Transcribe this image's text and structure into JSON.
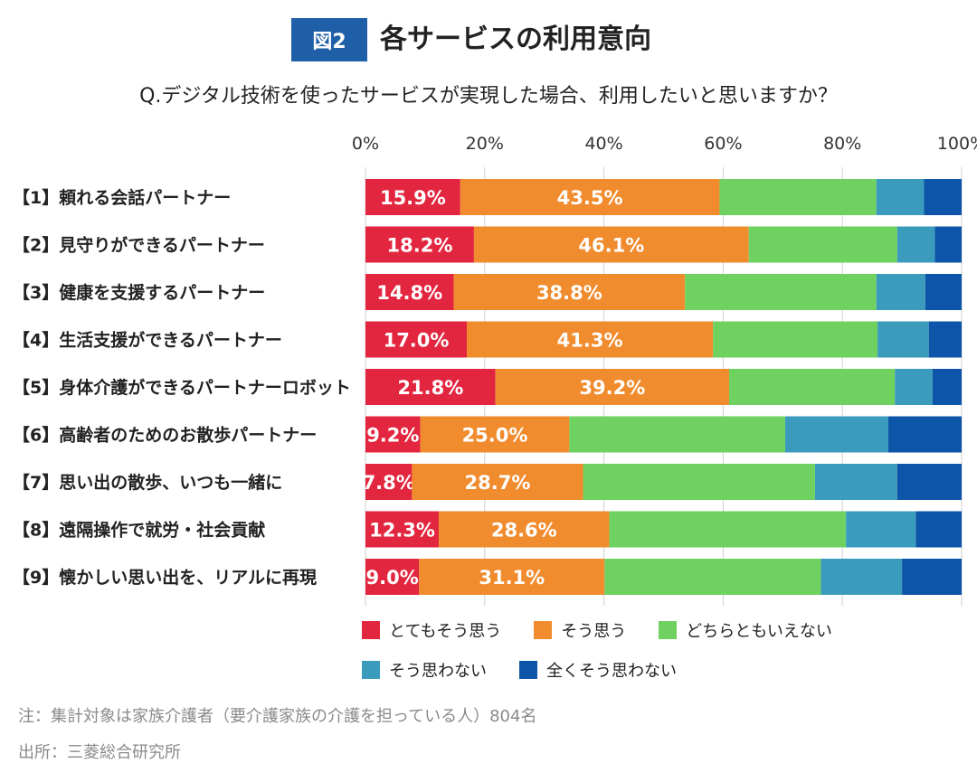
{
  "header": {
    "figure_label": "図2",
    "title": "各サービスの利用意向",
    "question": "Q.デジタル技術を使ったサービスが実現した場合、利用したいと思いますか？"
  },
  "chart_data": {
    "type": "bar",
    "orientation": "horizontal",
    "stacked": true,
    "title": "各サービスの利用意向",
    "xlim": [
      0,
      100
    ],
    "x_ticks": [
      "0%",
      "20%",
      "40%",
      "60%",
      "80%",
      "100%"
    ],
    "grid": true,
    "legend_position": "bottom",
    "categories": [
      "【1】頼れる会話パートナー",
      "【2】見守りができるパートナー",
      "【3】健康を支援するパートナー",
      "【4】生活支援ができるパートナー",
      "【5】身体介護ができるパートナーロボット",
      "【6】高齢者のためのお散歩パートナー",
      "【7】思い出の散歩、いつも一緒に",
      "【8】遠隔操作で就労・社会貢献",
      "【9】懐かしい思い出を、リアルに再現"
    ],
    "series": [
      {
        "name": "とてもそう思う",
        "color": "#e3263f",
        "labels_shown": true,
        "values": [
          15.9,
          18.2,
          14.8,
          17.0,
          21.8,
          9.2,
          7.8,
          12.3,
          9.0
        ]
      },
      {
        "name": "そう思う",
        "color": "#f08c2e",
        "labels_shown": true,
        "values": [
          43.5,
          46.1,
          38.8,
          41.3,
          39.2,
          25.0,
          28.7,
          28.6,
          31.1
        ]
      },
      {
        "name": "どちらともいえない",
        "color": "#6fd15f",
        "labels_shown": false,
        "values": [
          26.3,
          24.9,
          32.1,
          27.6,
          27.8,
          36.2,
          38.9,
          39.7,
          36.3
        ]
      },
      {
        "name": "そう思わない",
        "color": "#3b9bbd",
        "labels_shown": false,
        "values": [
          8.0,
          6.3,
          8.2,
          8.6,
          6.3,
          17.3,
          13.8,
          11.7,
          13.6
        ]
      },
      {
        "name": "全くそう思わない",
        "color": "#0c55a8",
        "labels_shown": false,
        "values": [
          6.3,
          4.5,
          6.1,
          5.5,
          4.9,
          12.3,
          10.8,
          7.7,
          10.0
        ]
      }
    ]
  },
  "notes": {
    "note": "注：集計対象は家族介護者（要介護家族の介護を担っている人）804名",
    "source": "出所：三菱総合研究所"
  }
}
